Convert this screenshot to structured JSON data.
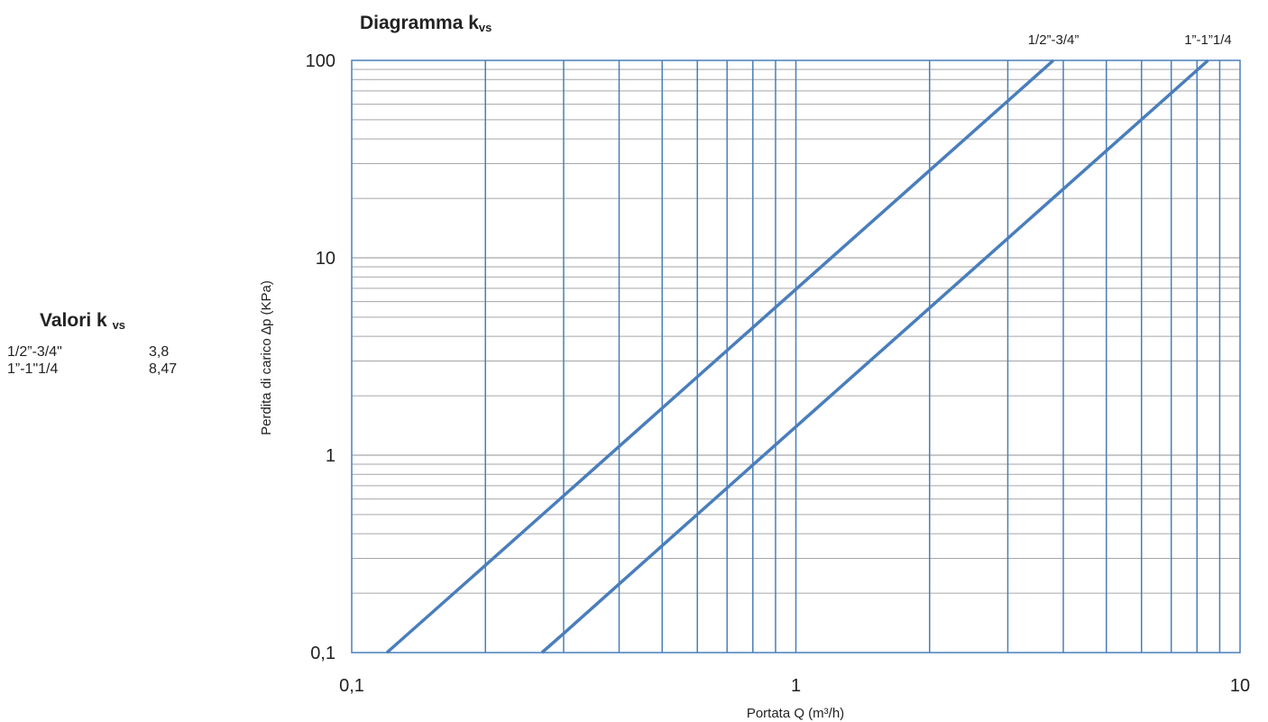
{
  "chart_data": {
    "type": "line",
    "title": "Diagramma k",
    "title_sub": "vs",
    "xlabel": "Portata Q (m³/h)",
    "ylabel": "Perdita di carico ∆p (KPa)",
    "x_scale": "log",
    "y_scale": "log",
    "xlim": [
      0.1,
      10
    ],
    "ylim": [
      0.1,
      100
    ],
    "x_ticks": [
      "0,1",
      "1",
      "10"
    ],
    "y_ticks": [
      "0,1",
      "1",
      "10",
      "100"
    ],
    "grid": true,
    "line_color": "#4a7ebb",
    "series": [
      {
        "name": "1/2”-3/4”",
        "kvs": 3.8,
        "x": [
          0.12,
          0.2,
          0.3,
          0.5,
          1,
          2,
          3,
          3.8
        ],
        "y": [
          0.1,
          0.277,
          0.623,
          1.731,
          6.925,
          27.7,
          62.33,
          100
        ]
      },
      {
        "name": "1”-1”1/4",
        "kvs": 8.47,
        "x": [
          0.268,
          0.3,
          0.5,
          1,
          2,
          3,
          5,
          7,
          8.47
        ],
        "y": [
          0.1,
          0.125,
          0.348,
          1.394,
          5.576,
          12.55,
          34.85,
          68.3,
          100
        ]
      }
    ]
  },
  "side_table": {
    "title": "Valori k",
    "title_sub": "vs",
    "rows": [
      {
        "label": "1/2”-3/4\"",
        "value": "3,8"
      },
      {
        "label": "1”-1\"1/4",
        "value": "8,47"
      }
    ]
  }
}
